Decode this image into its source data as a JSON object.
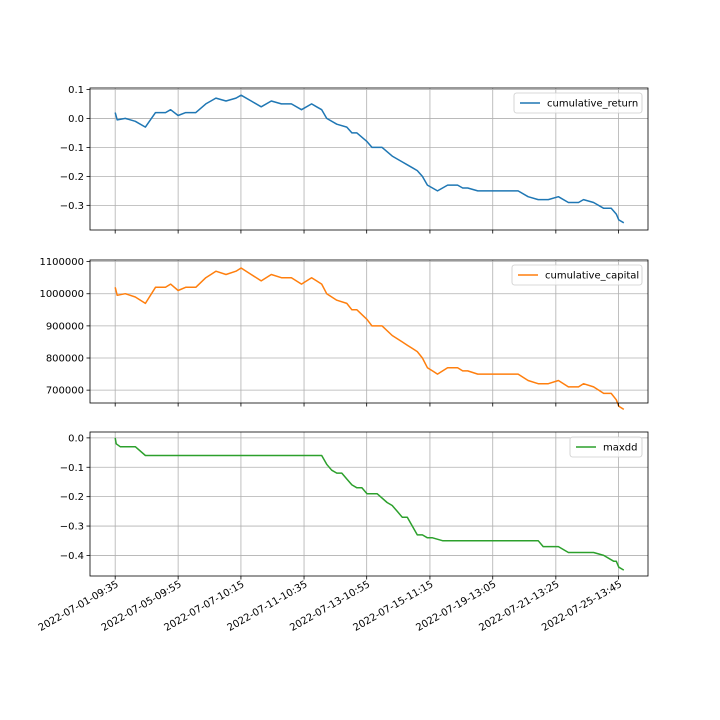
{
  "chart_data": [
    {
      "type": "line",
      "grid": true,
      "legend_position": "top-right",
      "x_tick_labels": [
        "2022-07-01-09:35",
        "2022-07-05-09:55",
        "2022-07-07-10:15",
        "2022-07-11-10:35",
        "2022-07-13-10:55",
        "2022-07-15-11:15",
        "2022-07-19-13:05",
        "2022-07-21-13:25",
        "2022-07-25-13:45"
      ],
      "x_tick_positions": [
        0,
        0.125,
        0.2497,
        0.375,
        0.4994,
        0.625,
        0.7497,
        0.875,
        0.9994
      ],
      "xlim": [
        -0.05,
        1.058
      ],
      "ylim": [
        -0.385,
        0.105
      ],
      "yticks": [
        0.1,
        0.0,
        -0.1,
        -0.2,
        -0.3
      ],
      "ytick_labels": [
        "0.1",
        "0.0",
        "−0.1",
        "−0.2",
        "−0.3"
      ],
      "series": [
        {
          "name": "cumulative_return",
          "color": "#1f77b4",
          "x": [
            0,
            0.004,
            0.02,
            0.04,
            0.06,
            0.08,
            0.1,
            0.11,
            0.125,
            0.14,
            0.16,
            0.18,
            0.19,
            0.2,
            0.22,
            0.24,
            0.25,
            0.27,
            0.29,
            0.31,
            0.33,
            0.35,
            0.37,
            0.39,
            0.4,
            0.41,
            0.42,
            0.44,
            0.46,
            0.47,
            0.48,
            0.5,
            0.51,
            0.53,
            0.55,
            0.57,
            0.58,
            0.59,
            0.6,
            0.61,
            0.62,
            0.63,
            0.64,
            0.66,
            0.68,
            0.69,
            0.7,
            0.72,
            0.74,
            0.76,
            0.78,
            0.8,
            0.82,
            0.84,
            0.86,
            0.88,
            0.9,
            0.92,
            0.93,
            0.95,
            0.97,
            0.985,
            0.995,
            1.0,
            1.01
          ],
          "y": [
            0.02,
            -0.005,
            0.0,
            -0.01,
            -0.03,
            0.02,
            0.02,
            0.03,
            0.01,
            0.02,
            0.02,
            0.05,
            0.06,
            0.07,
            0.06,
            0.07,
            0.08,
            0.06,
            0.04,
            0.06,
            0.05,
            0.05,
            0.03,
            0.05,
            0.04,
            0.03,
            0.0,
            -0.02,
            -0.03,
            -0.05,
            -0.05,
            -0.08,
            -0.1,
            -0.1,
            -0.13,
            -0.15,
            -0.16,
            -0.17,
            -0.18,
            -0.2,
            -0.23,
            -0.24,
            -0.25,
            -0.23,
            -0.23,
            -0.24,
            -0.24,
            -0.25,
            -0.25,
            -0.25,
            -0.25,
            -0.25,
            -0.27,
            -0.28,
            -0.28,
            -0.27,
            -0.29,
            -0.29,
            -0.28,
            -0.29,
            -0.31,
            -0.31,
            -0.33,
            -0.35,
            -0.36
          ]
        }
      ]
    },
    {
      "type": "line",
      "grid": true,
      "legend_position": "top-right",
      "x_tick_positions": [
        0,
        0.125,
        0.2497,
        0.375,
        0.4994,
        0.625,
        0.7497,
        0.875,
        0.9994
      ],
      "xlim": [
        -0.05,
        1.058
      ],
      "ylim": [
        660000,
        1105000
      ],
      "yticks": [
        1100000,
        1000000,
        900000,
        800000,
        700000
      ],
      "ytick_labels": [
        "1100000",
        "1000000",
        "900000",
        "800000",
        "700000"
      ],
      "series": [
        {
          "name": "cumulative_capital",
          "color": "#ff7f0e",
          "x": [
            0,
            0.004,
            0.02,
            0.04,
            0.06,
            0.08,
            0.1,
            0.11,
            0.125,
            0.14,
            0.16,
            0.18,
            0.19,
            0.2,
            0.22,
            0.24,
            0.25,
            0.27,
            0.29,
            0.31,
            0.33,
            0.35,
            0.37,
            0.39,
            0.4,
            0.41,
            0.42,
            0.44,
            0.46,
            0.47,
            0.48,
            0.5,
            0.51,
            0.53,
            0.55,
            0.57,
            0.58,
            0.59,
            0.6,
            0.61,
            0.62,
            0.63,
            0.64,
            0.66,
            0.68,
            0.69,
            0.7,
            0.72,
            0.74,
            0.76,
            0.78,
            0.8,
            0.82,
            0.84,
            0.86,
            0.88,
            0.9,
            0.92,
            0.93,
            0.95,
            0.97,
            0.985,
            0.995,
            1.0,
            1.01
          ],
          "y": [
            1020000,
            995000,
            1000000,
            990000,
            970000,
            1020000,
            1020000,
            1030000,
            1010000,
            1020000,
            1020000,
            1050000,
            1060000,
            1070000,
            1060000,
            1070000,
            1080000,
            1060000,
            1040000,
            1060000,
            1050000,
            1050000,
            1030000,
            1050000,
            1040000,
            1030000,
            1000000,
            980000,
            970000,
            950000,
            950000,
            920000,
            900000,
            900000,
            870000,
            850000,
            840000,
            830000,
            820000,
            800000,
            770000,
            760000,
            750000,
            770000,
            770000,
            760000,
            760000,
            750000,
            750000,
            750000,
            750000,
            750000,
            730000,
            720000,
            720000,
            730000,
            710000,
            710000,
            720000,
            710000,
            690000,
            690000,
            670000,
            650000,
            640000
          ]
        }
      ]
    },
    {
      "type": "line",
      "grid": true,
      "legend_position": "top-right",
      "x_tick_positions": [
        0,
        0.125,
        0.2497,
        0.375,
        0.4994,
        0.625,
        0.7497,
        0.875,
        0.9994
      ],
      "xlim": [
        -0.05,
        1.058
      ],
      "ylim": [
        -0.47,
        0.02
      ],
      "yticks": [
        0.0,
        -0.1,
        -0.2,
        -0.3,
        -0.4
      ],
      "ytick_labels": [
        "0.0",
        "−0.1",
        "−0.2",
        "−0.3",
        "−0.4"
      ],
      "series": [
        {
          "name": "maxdd",
          "color": "#2ca02c",
          "x": [
            0,
            0.002,
            0.01,
            0.04,
            0.06,
            0.1,
            0.2,
            0.3,
            0.4,
            0.41,
            0.42,
            0.43,
            0.44,
            0.45,
            0.46,
            0.47,
            0.48,
            0.49,
            0.5,
            0.52,
            0.54,
            0.55,
            0.56,
            0.57,
            0.58,
            0.6,
            0.61,
            0.62,
            0.63,
            0.65,
            0.66,
            0.68,
            0.7,
            0.75,
            0.8,
            0.84,
            0.85,
            0.88,
            0.9,
            0.95,
            0.97,
            0.99,
            0.995,
            1.0,
            1.01
          ],
          "y": [
            0.0,
            -0.02,
            -0.03,
            -0.03,
            -0.06,
            -0.06,
            -0.06,
            -0.06,
            -0.06,
            -0.06,
            -0.09,
            -0.11,
            -0.12,
            -0.12,
            -0.14,
            -0.16,
            -0.17,
            -0.17,
            -0.19,
            -0.19,
            -0.22,
            -0.23,
            -0.25,
            -0.27,
            -0.27,
            -0.33,
            -0.33,
            -0.34,
            -0.34,
            -0.35,
            -0.35,
            -0.35,
            -0.35,
            -0.35,
            -0.35,
            -0.35,
            -0.37,
            -0.37,
            -0.39,
            -0.39,
            -0.4,
            -0.42,
            -0.42,
            -0.44,
            -0.45
          ]
        }
      ]
    }
  ]
}
